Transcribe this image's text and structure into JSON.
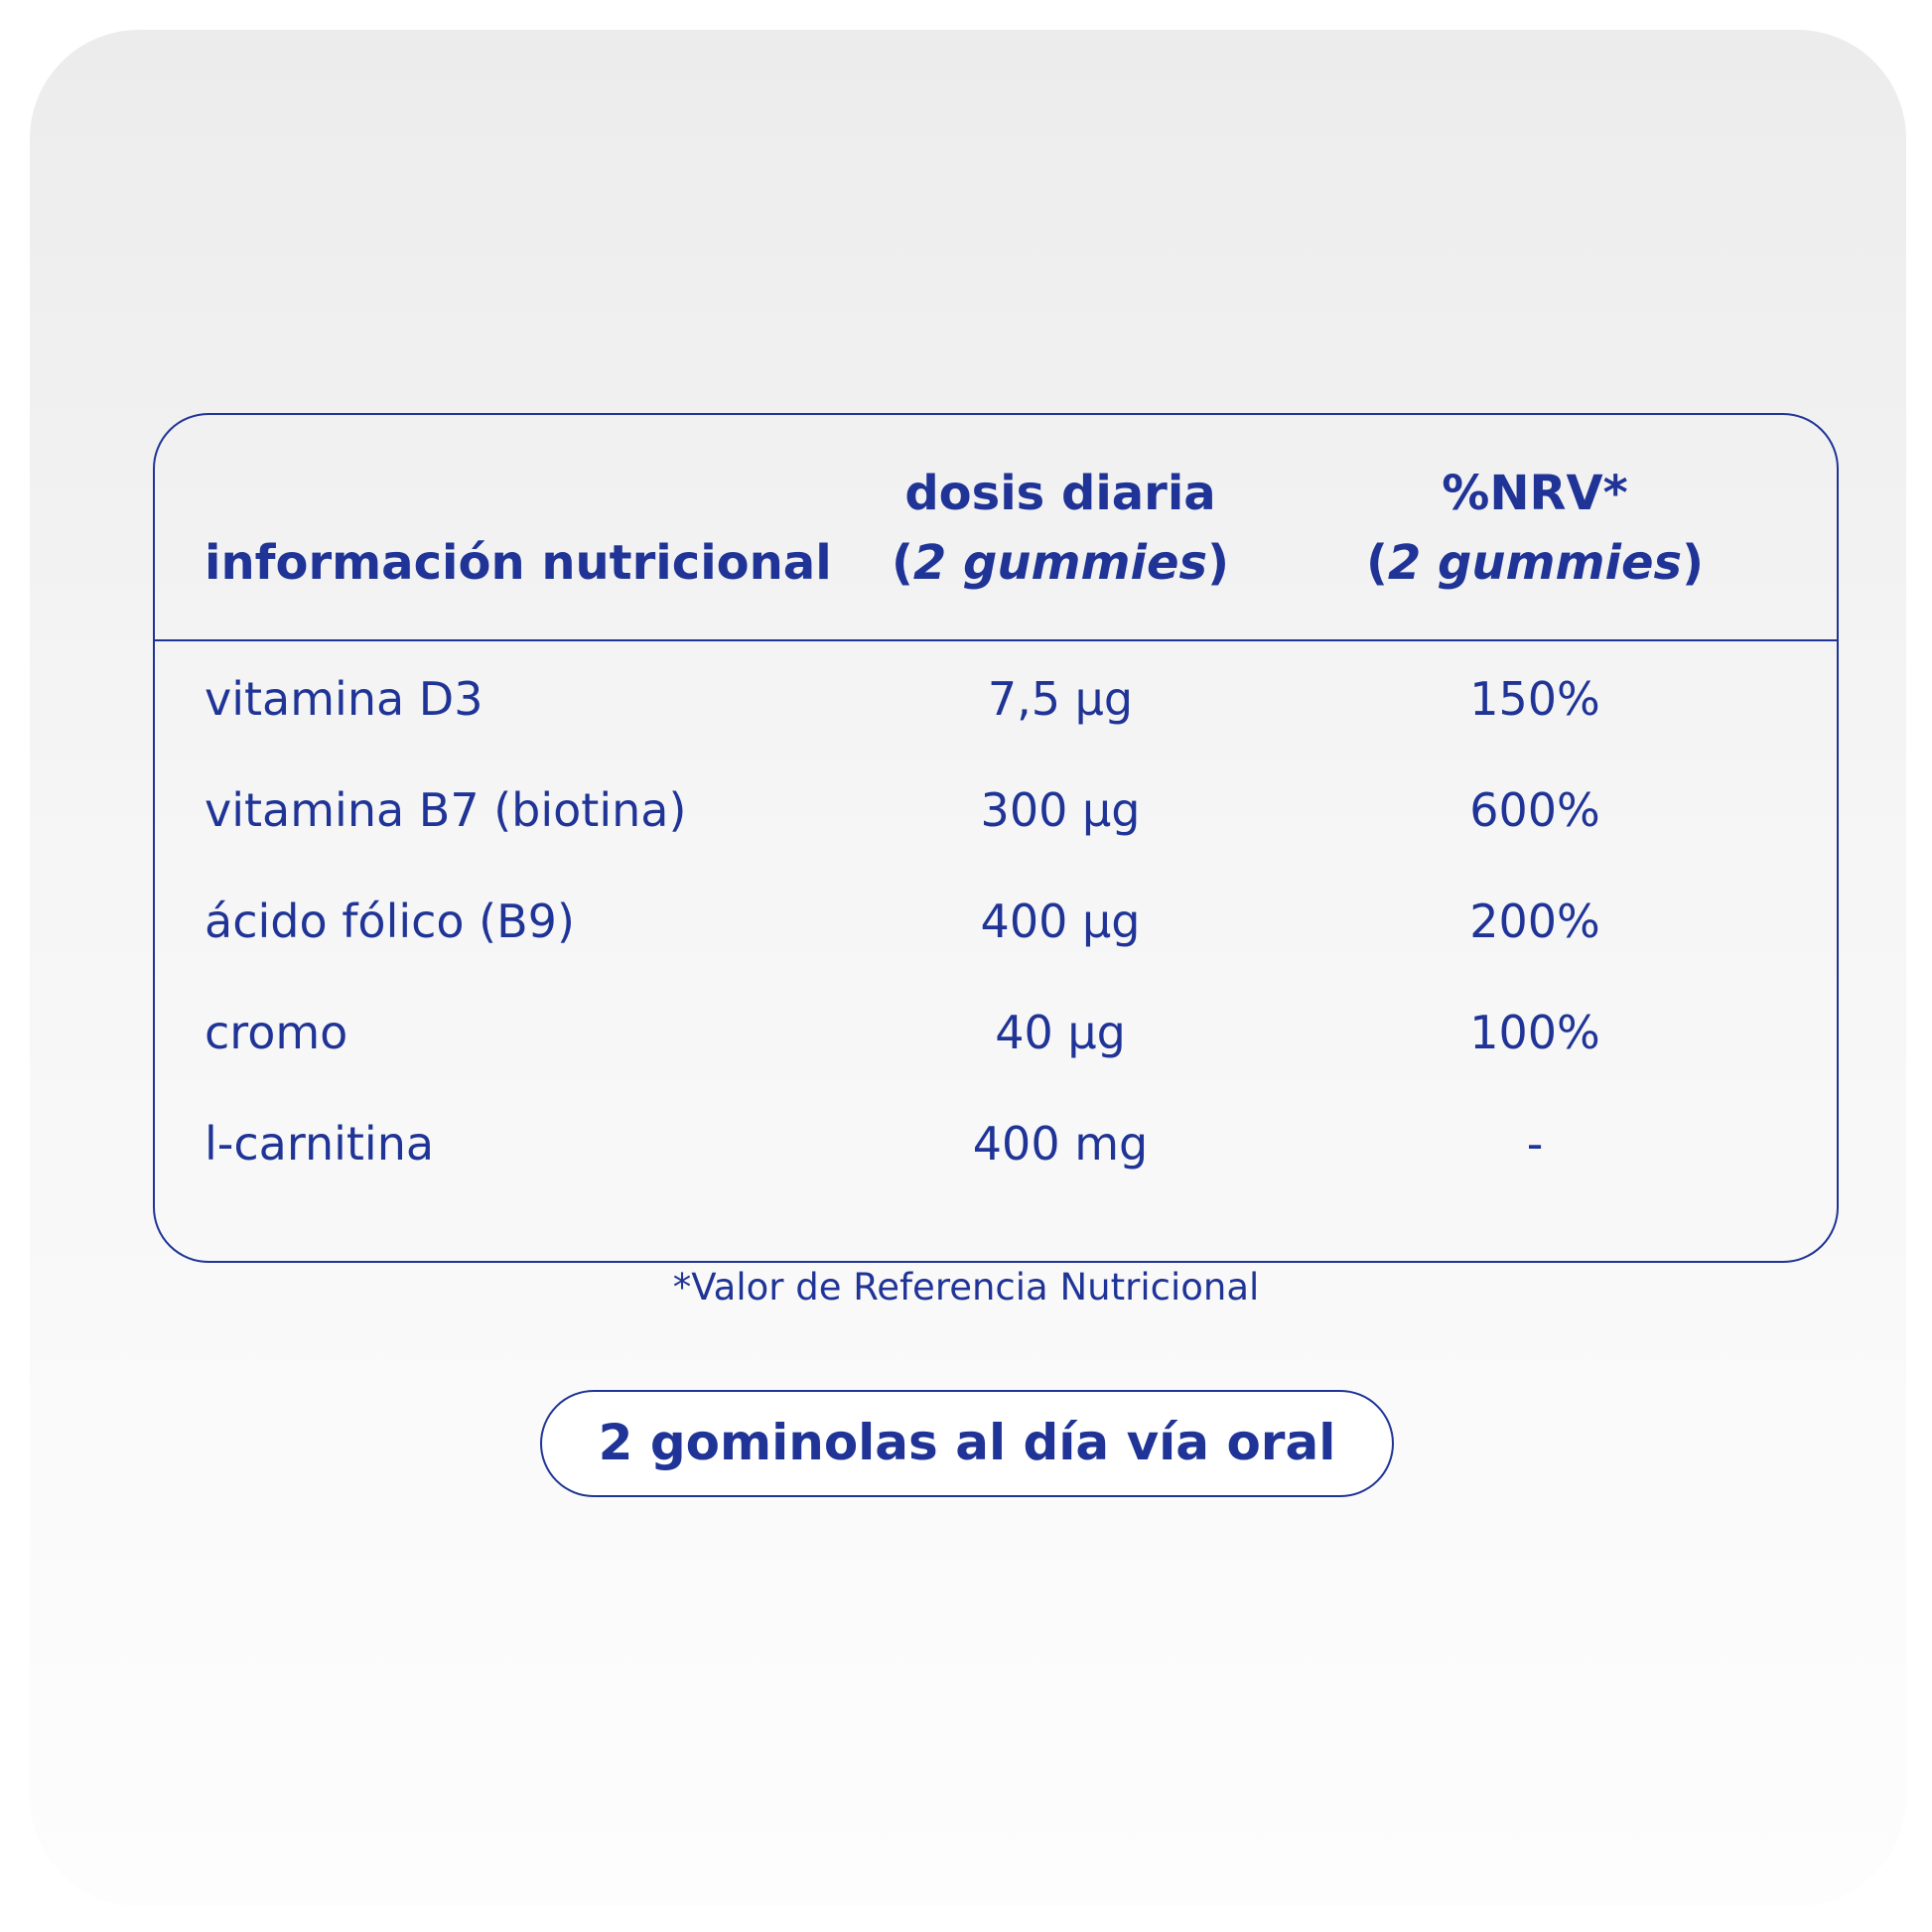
{
  "table": {
    "header": {
      "label": "información nutricional",
      "dose": {
        "line1": "dosis diaria",
        "open": "(",
        "qty": "2 gummies",
        "close": ")"
      },
      "nrv": {
        "line1": "%NRV*",
        "open": "(",
        "qty": "2 gummies",
        "close": ")"
      }
    },
    "rows": [
      {
        "name": "vitamina D3",
        "dose": "7,5 µg",
        "nrv": "150%"
      },
      {
        "name": "vitamina B7 (biotina)",
        "dose": "300 µg",
        "nrv": "600%"
      },
      {
        "name": "ácido fólico (B9)",
        "dose": "400 µg",
        "nrv": "200%"
      },
      {
        "name": "cromo",
        "dose": "40 µg",
        "nrv": "100%"
      },
      {
        "name": "l-carnitina",
        "dose": "400 mg",
        "nrv": "-"
      }
    ]
  },
  "footnote": "*Valor de Referencia Nutricional",
  "dosage_badge": "2 gominolas al día vía oral",
  "colors": {
    "accent": "#1f3496",
    "background_top": "#ececec",
    "background_bottom": "#fdfdfd"
  }
}
